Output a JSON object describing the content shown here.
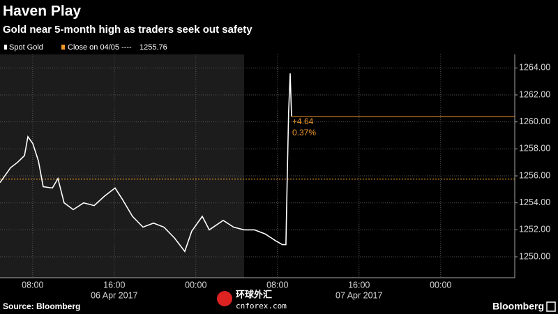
{
  "chart_data": {
    "type": "line",
    "title": "Haven Play",
    "subtitle": "Gold near 5-month high as traders seek out safety",
    "series": [
      {
        "name": "Spot Gold",
        "color": "#ffffff",
        "x": [
          "2017-04-06T04:48",
          "2017-04-06T05:50",
          "2017-04-06T06:31",
          "2017-04-06T07:12",
          "2017-04-06T07:32",
          "2017-04-06T08:01",
          "2017-04-06T08:34",
          "2017-04-06T09:02",
          "2017-04-06T09:56",
          "2017-04-06T10:29",
          "2017-04-06T11:05",
          "2017-04-06T11:59",
          "2017-04-06T13:00",
          "2017-04-06T14:02",
          "2017-04-06T15:03",
          "2017-04-06T16:05",
          "2017-04-06T16:46",
          "2017-04-06T17:47",
          "2017-04-06T18:49",
          "2017-04-06T19:51",
          "2017-04-06T20:52",
          "2017-04-06T21:54",
          "2017-04-06T22:55",
          "2017-04-06T23:36",
          "2017-04-07T00:38",
          "2017-04-07T01:19",
          "2017-04-07T02:41",
          "2017-04-07T03:42",
          "2017-04-07T04:44",
          "2017-04-07T05:45",
          "2017-04-07T06:47",
          "2017-04-07T07:48",
          "2017-04-07T08:29",
          "2017-04-07T08:50",
          "2017-04-07T08:58",
          "2017-04-07T09:06",
          "2017-04-07T09:15",
          "2017-04-07T09:23"
        ],
        "values": [
          1255.5,
          1256.6,
          1257.0,
          1257.5,
          1258.9,
          1258.4,
          1257.1,
          1255.2,
          1255.1,
          1255.8,
          1254.0,
          1253.5,
          1254.0,
          1253.8,
          1254.5,
          1255.1,
          1254.3,
          1253.0,
          1252.2,
          1252.5,
          1252.2,
          1251.4,
          1250.4,
          1251.9,
          1253.0,
          1252.0,
          1252.7,
          1252.2,
          1252.0,
          1252.0,
          1251.7,
          1251.2,
          1250.9,
          1250.9,
          1256.1,
          1260.7,
          1263.6,
          1260.4
        ]
      }
    ],
    "close_label": "Close on 04/05 ----",
    "close_value": 1255.76,
    "close_color": "#f0962a",
    "change": "+4.64",
    "change_pct": "0.37%",
    "xlim": [
      "2017-04-06T04:48",
      "2017-04-08T07:16"
    ],
    "xticks": [
      {
        "value": "2017-04-06T08:00",
        "label": "08:00"
      },
      {
        "value": "2017-04-06T16:00",
        "label": "16:00"
      },
      {
        "value": "2017-04-07T00:00",
        "label": "00:00"
      },
      {
        "value": "2017-04-07T08:00",
        "label": "08:00"
      },
      {
        "value": "2017-04-07T16:00",
        "label": "16:00"
      },
      {
        "value": "2017-04-08T00:00",
        "label": "00:00"
      }
    ],
    "x_date_labels": [
      {
        "value": "2017-04-06T16:00",
        "label": "06 Apr 2017"
      },
      {
        "value": "2017-04-07T16:00",
        "label": "07 Apr 2017"
      }
    ],
    "ylim": [
      1248.45,
      1265.0
    ],
    "yticks": [
      {
        "value": 1250,
        "label": "1250.00"
      },
      {
        "value": 1252,
        "label": "1252.00"
      },
      {
        "value": 1254,
        "label": "1254.00"
      },
      {
        "value": 1256,
        "label": "1256.00"
      },
      {
        "value": 1258,
        "label": "1258.00"
      },
      {
        "value": 1260,
        "label": "1260.00"
      },
      {
        "value": 1262,
        "label": "1262.00"
      },
      {
        "value": 1264,
        "label": "1264.00"
      }
    ],
    "grid": true,
    "source": "Source: Bloomberg",
    "brand": "Bloomberg",
    "watermark": "环球外汇",
    "watermark_sub": "cnforex.com"
  }
}
